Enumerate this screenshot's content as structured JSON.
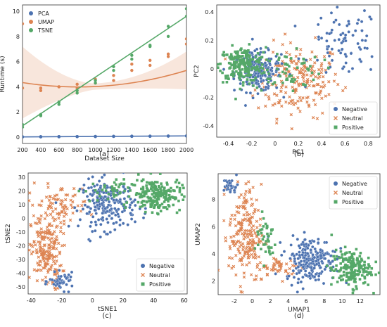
{
  "chart_data": [
    {
      "type": "scatter",
      "panel_label": "(a)",
      "xlabel": "Dataset Size",
      "ylabel": "Runtime (s)",
      "xlim": [
        200,
        2000
      ],
      "ylim": [
        -0.5,
        10.5
      ],
      "xticks": [
        200,
        400,
        600,
        800,
        1000,
        1200,
        1400,
        1600,
        1800,
        2000
      ],
      "yticks": [
        0,
        2,
        4,
        6,
        8,
        10
      ],
      "legend_position": "top-left",
      "grid": false,
      "series": [
        {
          "name": "PCA",
          "color": "#4c72b0",
          "fit": "linear",
          "x": [
            200,
            200,
            200,
            400,
            400,
            400,
            600,
            600,
            600,
            800,
            800,
            800,
            1000,
            1000,
            1000,
            1200,
            1200,
            1200,
            1400,
            1400,
            1400,
            1600,
            1600,
            1600,
            1800,
            1800,
            1800,
            2000,
            2000,
            2000
          ],
          "y": [
            0.02,
            0.03,
            0.02,
            0.03,
            0.04,
            0.03,
            0.04,
            0.05,
            0.03,
            0.05,
            0.04,
            0.05,
            0.05,
            0.06,
            0.05,
            0.06,
            0.07,
            0.06,
            0.07,
            0.06,
            0.08,
            0.07,
            0.08,
            0.08,
            0.09,
            0.08,
            0.09,
            0.1,
            0.09,
            0.1
          ],
          "fit_line": [
            0.02,
            0.1
          ]
        },
        {
          "name": "UMAP",
          "color": "#dd8452",
          "fit": "quadratic",
          "x": [
            200,
            200,
            400,
            400,
            600,
            600,
            800,
            800,
            1000,
            1000,
            1200,
            1200,
            1400,
            1400,
            1600,
            1600,
            1800,
            1800,
            2000,
            2000
          ],
          "y": [
            9.0,
            3.9,
            3.7,
            3.9,
            4.0,
            4.0,
            3.9,
            4.2,
            4.3,
            4.6,
            4.5,
            4.9,
            5.3,
            5.8,
            6.1,
            5.7,
            6.6,
            6.4,
            7.8,
            7.4
          ],
          "fit_line_coeffs": [
            4.6,
            -0.00151,
            9.3e-07
          ]
        },
        {
          "name": "TSNE",
          "color": "#55a868",
          "fit": "linear",
          "x": [
            200,
            200,
            400,
            400,
            600,
            600,
            800,
            800,
            1000,
            1000,
            1200,
            1200,
            1400,
            1400,
            1600,
            1600,
            1800,
            1800,
            2000,
            2000
          ],
          "y": [
            0.8,
            1.0,
            1.7,
            1.8,
            2.6,
            2.8,
            3.5,
            3.7,
            4.3,
            4.5,
            5.3,
            5.6,
            6.2,
            6.5,
            7.2,
            7.3,
            8.0,
            8.8,
            9.6,
            10.2
          ],
          "fit_line": [
            0.9,
            9.6
          ]
        }
      ]
    },
    {
      "type": "scatter",
      "panel_label": "(b)",
      "xlabel": "PC1",
      "ylabel": "PC2",
      "xlim": [
        -0.5,
        0.9
      ],
      "ylim": [
        -0.48,
        0.45
      ],
      "xticks": [
        -0.4,
        -0.2,
        0.0,
        0.2,
        0.4,
        0.6,
        0.8
      ],
      "yticks": [
        -0.4,
        -0.2,
        0.0,
        0.2,
        0.4
      ],
      "legend_position": "bottom-right",
      "series": [
        {
          "name": "Negative",
          "color": "#4c72b0",
          "marker": "circle",
          "clusters": [
            {
              "cx": -0.15,
              "cy": -0.02,
              "sx": 0.1,
              "sy": 0.07,
              "n": 200
            },
            {
              "cx": 0.6,
              "cy": 0.18,
              "sx": 0.15,
              "sy": 0.12,
              "n": 80
            }
          ]
        },
        {
          "name": "Neutral",
          "color": "#dd8452",
          "marker": "x",
          "clusters": [
            {
              "cx": 0.2,
              "cy": -0.08,
              "sx": 0.18,
              "sy": 0.13,
              "n": 200
            }
          ]
        },
        {
          "name": "Positive",
          "color": "#55a868",
          "marker": "square",
          "clusters": [
            {
              "cx": -0.28,
              "cy": 0.03,
              "sx": 0.1,
              "sy": 0.06,
              "n": 200
            },
            {
              "cx": 0.1,
              "cy": 0.0,
              "sx": 0.15,
              "sy": 0.08,
              "n": 60
            }
          ]
        }
      ]
    },
    {
      "type": "scatter",
      "panel_label": "(c)",
      "xlabel": "tSNE1",
      "ylabel": "tSNE2",
      "xlim": [
        -42,
        62
      ],
      "ylim": [
        -55,
        33
      ],
      "xticks": [
        -40,
        -20,
        0,
        20,
        40,
        60
      ],
      "yticks": [
        -50,
        -40,
        -30,
        -20,
        -10,
        0,
        10,
        20,
        30
      ],
      "legend_position": "bottom-right",
      "series": [
        {
          "name": "Negative",
          "color": "#4c72b0",
          "marker": "circle",
          "clusters": [
            {
              "cx": 10,
              "cy": 10,
              "sx": 9,
              "sy": 9,
              "n": 220
            },
            {
              "cx": -20,
              "cy": -46,
              "sx": 4,
              "sy": 3,
              "n": 50
            }
          ]
        },
        {
          "name": "Neutral",
          "color": "#dd8452",
          "marker": "x",
          "clusters": [
            {
              "cx": -30,
              "cy": -25,
              "sx": 5,
              "sy": 14,
              "n": 200
            },
            {
              "cx": -22,
              "cy": 10,
              "sx": 10,
              "sy": 7,
              "n": 80
            }
          ]
        },
        {
          "name": "Positive",
          "color": "#55a868",
          "marker": "square",
          "clusters": [
            {
              "cx": 42,
              "cy": 17,
              "sx": 8,
              "sy": 6,
              "n": 200
            },
            {
              "cx": 10,
              "cy": 20,
              "sx": 8,
              "sy": 4,
              "n": 40
            }
          ]
        }
      ]
    },
    {
      "type": "scatter",
      "panel_label": "(d)",
      "xlabel": "UMAP1",
      "ylabel": "UMAP2",
      "xlim": [
        -3.8,
        14.2
      ],
      "ylim": [
        1.0,
        9.9
      ],
      "xticks": [
        -2,
        0,
        2,
        4,
        6,
        8,
        10,
        12
      ],
      "yticks": [
        2,
        4,
        6,
        8
      ],
      "legend_position": "top-right",
      "series": [
        {
          "name": "Negative",
          "color": "#4c72b0",
          "marker": "circle",
          "clusters": [
            {
              "cx": 6.5,
              "cy": 3.6,
              "sx": 1.4,
              "sy": 0.8,
              "n": 220
            },
            {
              "cx": -2.4,
              "cy": 9.0,
              "sx": 0.4,
              "sy": 0.3,
              "n": 30
            }
          ]
        },
        {
          "name": "Neutral",
          "color": "#dd8452",
          "marker": "x",
          "clusters": [
            {
              "cx": -0.8,
              "cy": 5.5,
              "sx": 0.9,
              "sy": 1.8,
              "n": 200
            },
            {
              "cx": 3.0,
              "cy": 3.0,
              "sx": 1.2,
              "sy": 0.4,
              "n": 50
            }
          ]
        },
        {
          "name": "Positive",
          "color": "#55a868",
          "marker": "square",
          "clusters": [
            {
              "cx": 11.0,
              "cy": 2.9,
              "sx": 1.1,
              "sy": 0.7,
              "n": 180
            },
            {
              "cx": 1.5,
              "cy": 5.2,
              "sx": 0.6,
              "sy": 0.9,
              "n": 40
            }
          ]
        }
      ]
    }
  ]
}
